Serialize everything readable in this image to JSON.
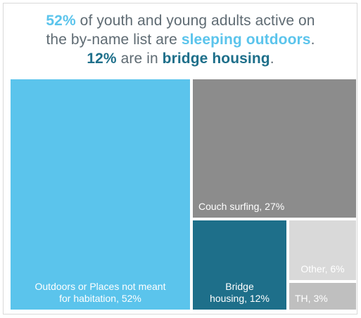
{
  "headline": {
    "line1_pct": "52%",
    "line1_text": " of youth and young adults active on",
    "line2_text_a": "the by-name list are ",
    "line2_emph": "sleeping outdoors",
    "line2_end": ".",
    "line3_pct": "12%",
    "line3_text": " are in ",
    "line3_emph": "bridge housing",
    "line3_end": "."
  },
  "chart_data": {
    "type": "treemap",
    "title": "52% of youth and young adults active on the by-name list are sleeping outdoors. 12% are in bridge housing.",
    "items": [
      {
        "label": "Outdoors or Places not meant\nfor habitation, 52%",
        "value": 52,
        "color": "#5bc4ec"
      },
      {
        "label": "Couch surfing, 27%",
        "value": 27,
        "color": "#8c8c8c"
      },
      {
        "label": "Bridge\nhousing, 12%",
        "value": 12,
        "color": "#1e6f8a"
      },
      {
        "label": "Other, 6%",
        "value": 6,
        "color": "#d9d9d9"
      },
      {
        "label": "TH, 3%",
        "value": 3,
        "color": "#bfbfbf"
      }
    ]
  }
}
